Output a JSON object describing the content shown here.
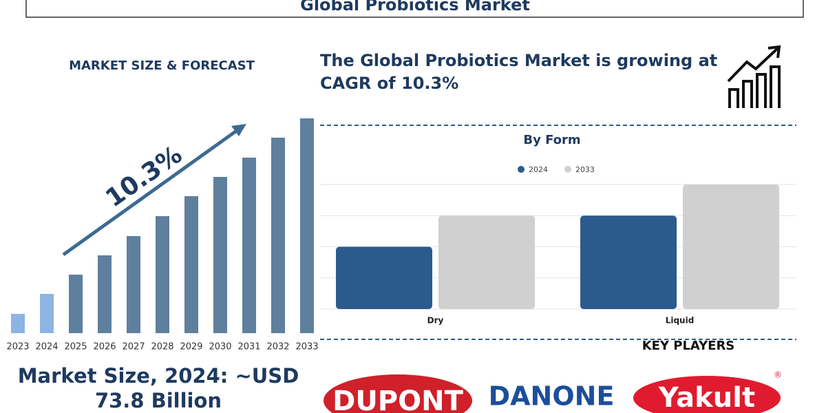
{
  "header": {
    "title": "Global Probiotics Market"
  },
  "section_title": "MARKET SIZE & FORECAST",
  "headline": "The Global Probiotics Market is growing at CAGR of 10.3%",
  "market_size": "Market Size, 2024: ~USD 73.8 Billion",
  "key_players": {
    "title": "KEY PLAYERS",
    "logos": [
      "DUPONT",
      "DANONE",
      "Yakult"
    ]
  },
  "chart_data": [
    {
      "type": "bar",
      "annotation": "10.3%",
      "categories": [
        "2023",
        "2024",
        "2025",
        "2026",
        "2027",
        "2028",
        "2029",
        "2030",
        "2031",
        "2032",
        "2033"
      ],
      "values": [
        28,
        57,
        85,
        113,
        141,
        170,
        199,
        227,
        255,
        284,
        312
      ],
      "colors": [
        "#8db4e2",
        "#8db4e2",
        "#5f7f9e",
        "#5f7f9e",
        "#5f7f9e",
        "#5f7f9e",
        "#5f7f9e",
        "#5f7f9e",
        "#5f7f9e",
        "#5f7f9e",
        "#5f7f9e"
      ],
      "ylim": [
        0,
        320
      ]
    },
    {
      "type": "grouped-bar",
      "title": "By Form",
      "categories": [
        "Dry",
        "Liquid"
      ],
      "series": [
        {
          "name": "2024",
          "color": "#2a5b8c",
          "values": [
            2,
            3
          ]
        },
        {
          "name": "2033",
          "color": "#d0d0d0",
          "values": [
            3,
            4
          ]
        }
      ],
      "ylim": [
        0,
        4
      ],
      "yticks": [
        0,
        1,
        2,
        3,
        4
      ],
      "grid": true,
      "legend": "top"
    }
  ]
}
